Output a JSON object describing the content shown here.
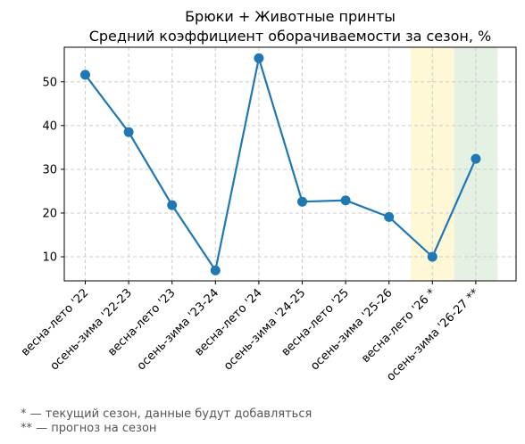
{
  "chart_data": {
    "type": "line",
    "title": [
      "Брюки + Животные принты",
      "Средний коэффициент оборачиваемости за сезон, %"
    ],
    "xlabel": "",
    "ylabel": "",
    "categories": [
      "весна-лето '22",
      "осень-зима '22-23",
      "весна-лето '23",
      "осень-зима '23-24",
      "весна-лето '24",
      "осень-зима '24-25",
      "весна-лето '25",
      "осень-зима '25-26",
      "весна-лето '26 *",
      "осень-зима '26-27 **"
    ],
    "series": [
      {
        "values": [
          51.6,
          38.5,
          21.8,
          6.9,
          55.4,
          22.6,
          22.9,
          19.1,
          10.0,
          32.4
        ],
        "color": "#1f77b4"
      }
    ],
    "yticks": [
      10,
      20,
      30,
      40,
      50
    ],
    "ylim": [
      4.5,
      57.9
    ],
    "grid": true,
    "highlights": [
      {
        "category_index": 8,
        "color": "#fff8d6"
      },
      {
        "category_index": 9,
        "color": "#e5f1e3"
      }
    ]
  },
  "footnotes": [
    "* — текущий сезон, данные будут добавляться",
    "** — прогноз на сезон"
  ]
}
